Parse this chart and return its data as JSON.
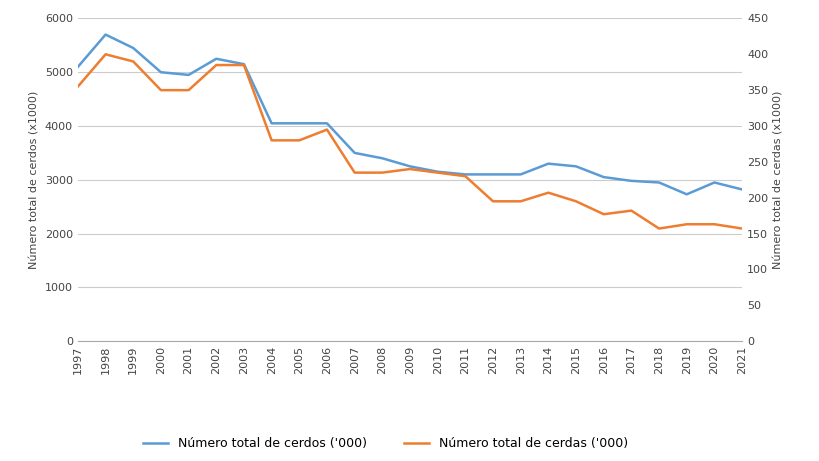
{
  "years": [
    1997,
    1998,
    1999,
    2000,
    2001,
    2002,
    2003,
    2004,
    2005,
    2006,
    2007,
    2008,
    2009,
    2010,
    2011,
    2012,
    2013,
    2014,
    2015,
    2016,
    2017,
    2018,
    2019,
    2020,
    2021
  ],
  "total_pigs": [
    5100,
    5700,
    5450,
    5000,
    4950,
    5250,
    5150,
    4050,
    4050,
    4050,
    3500,
    3400,
    3250,
    3150,
    3100,
    3100,
    3100,
    3300,
    3250,
    3050,
    2980,
    2950,
    2730,
    2950,
    2820
  ],
  "total_sows": [
    355,
    400,
    390,
    350,
    350,
    385,
    385,
    280,
    280,
    295,
    235,
    235,
    240,
    235,
    230,
    195,
    195,
    207,
    195,
    177,
    182,
    157,
    163,
    163,
    157
  ],
  "pig_color": "#5B9BD5",
  "sow_color": "#ED7D31",
  "ylabel_left": "Número total de cerdos (x1000)",
  "ylabel_right": "Número total de cerdas (x1000)",
  "legend_pigs": "Número total de cerdos ('000)",
  "legend_sows": "Número total de cerdas ('000)",
  "ylim_left": [
    0,
    6000
  ],
  "ylim_right": [
    0,
    450
  ],
  "yticks_left": [
    0,
    1000,
    2000,
    3000,
    4000,
    5000,
    6000
  ],
  "yticks_right": [
    0,
    50,
    100,
    150,
    200,
    250,
    300,
    350,
    400,
    450
  ],
  "background_color": "#ffffff",
  "grid_color": "#cccccc",
  "line_width": 1.8,
  "tick_label_fontsize": 8,
  "axis_label_fontsize": 8,
  "legend_fontsize": 9
}
